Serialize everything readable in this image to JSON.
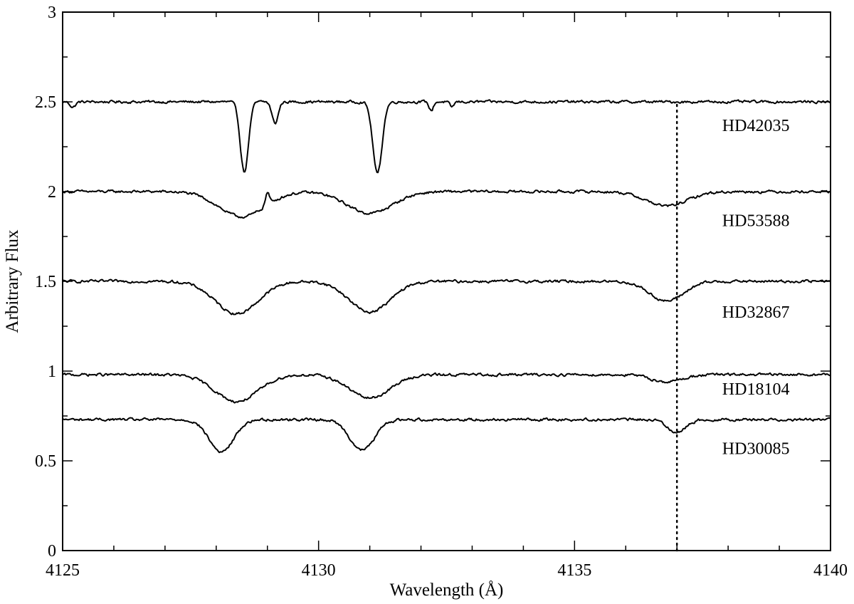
{
  "chart_data": {
    "type": "line",
    "xlabel": "Wavelength (Å)",
    "ylabel": "Arbitrary Flux",
    "xlim": [
      4125,
      4140
    ],
    "ylim": [
      0,
      3
    ],
    "x_ticks": [
      4125,
      4130,
      4135,
      4140
    ],
    "x_tick_labels": [
      "4125",
      "4130",
      "4135",
      "4140"
    ],
    "x_minor_step": 1,
    "y_ticks": [
      0,
      0.5,
      1,
      1.5,
      2,
      2.5,
      3
    ],
    "y_tick_labels": [
      "0",
      "0.5",
      "1",
      "1.5",
      "2",
      "2.5",
      "3"
    ],
    "y_minor_step": 0.25,
    "grid": false,
    "legend": "none",
    "reference_line": {
      "x": 4137.0,
      "style": "dotted",
      "y_range": [
        0,
        2.5
      ]
    },
    "series": [
      {
        "name": "HD42035",
        "label_position": [
          4139.2,
          2.37
        ],
        "continuum": 2.5,
        "lines": [
          {
            "center": 4125.2,
            "depth": 0.03,
            "width": 0.05
          },
          {
            "center": 4128.55,
            "depth": 0.39,
            "width": 0.08
          },
          {
            "center": 4129.15,
            "depth": 0.12,
            "width": 0.06
          },
          {
            "center": 4131.15,
            "depth": 0.4,
            "width": 0.09
          },
          {
            "center": 4132.2,
            "depth": 0.05,
            "width": 0.04
          },
          {
            "center": 4132.6,
            "depth": 0.03,
            "width": 0.04
          }
        ]
      },
      {
        "name": "HD53588",
        "label_position": [
          4139.2,
          1.84
        ],
        "continuum": 2.0,
        "emission": {
          "center": 4129.0,
          "height": 0.07,
          "width": 0.04
        },
        "lines": [
          {
            "center": 4128.5,
            "depth": 0.14,
            "width": 0.45
          },
          {
            "center": 4131.0,
            "depth": 0.12,
            "width": 0.45
          },
          {
            "center": 4136.8,
            "depth": 0.08,
            "width": 0.4
          }
        ]
      },
      {
        "name": "HD32867",
        "label_position": [
          4139.2,
          1.33
        ],
        "continuum": 1.5,
        "lines": [
          {
            "center": 4128.4,
            "depth": 0.18,
            "width": 0.42
          },
          {
            "center": 4131.0,
            "depth": 0.17,
            "width": 0.4
          },
          {
            "center": 4136.8,
            "depth": 0.11,
            "width": 0.33
          }
        ]
      },
      {
        "name": "HD18104",
        "label_position": [
          4139.2,
          0.9
        ],
        "continuum": 0.98,
        "lines": [
          {
            "center": 4128.4,
            "depth": 0.15,
            "width": 0.42
          },
          {
            "center": 4131.0,
            "depth": 0.13,
            "width": 0.4
          },
          {
            "center": 4136.8,
            "depth": 0.04,
            "width": 0.3
          }
        ]
      },
      {
        "name": "HD30085",
        "label_position": [
          4139.2,
          0.57
        ],
        "continuum": 0.73,
        "lines": [
          {
            "center": 4128.1,
            "depth": 0.18,
            "width": 0.24
          },
          {
            "center": 4130.85,
            "depth": 0.17,
            "width": 0.24
          },
          {
            "center": 4137.0,
            "depth": 0.07,
            "width": 0.18
          }
        ]
      }
    ]
  }
}
